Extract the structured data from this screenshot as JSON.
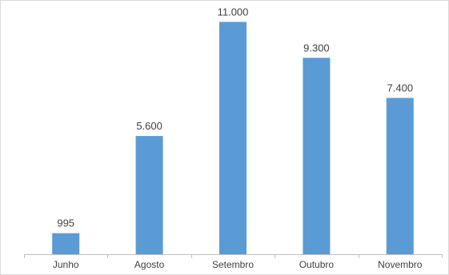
{
  "chart_data": {
    "type": "bar",
    "title": "",
    "xlabel": "",
    "ylabel": "",
    "categories": [
      "Junho",
      "Agosto",
      "Setembro",
      "Outubro",
      "Novembro"
    ],
    "values": [
      995,
      5600,
      11000,
      9300,
      7400
    ],
    "value_labels": [
      "995",
      "5.600",
      "11.000",
      "9.300",
      "7.400"
    ],
    "ylim": [
      0,
      12000
    ],
    "grid": false,
    "legend": "none",
    "bar_color": "#5b9bd5"
  }
}
